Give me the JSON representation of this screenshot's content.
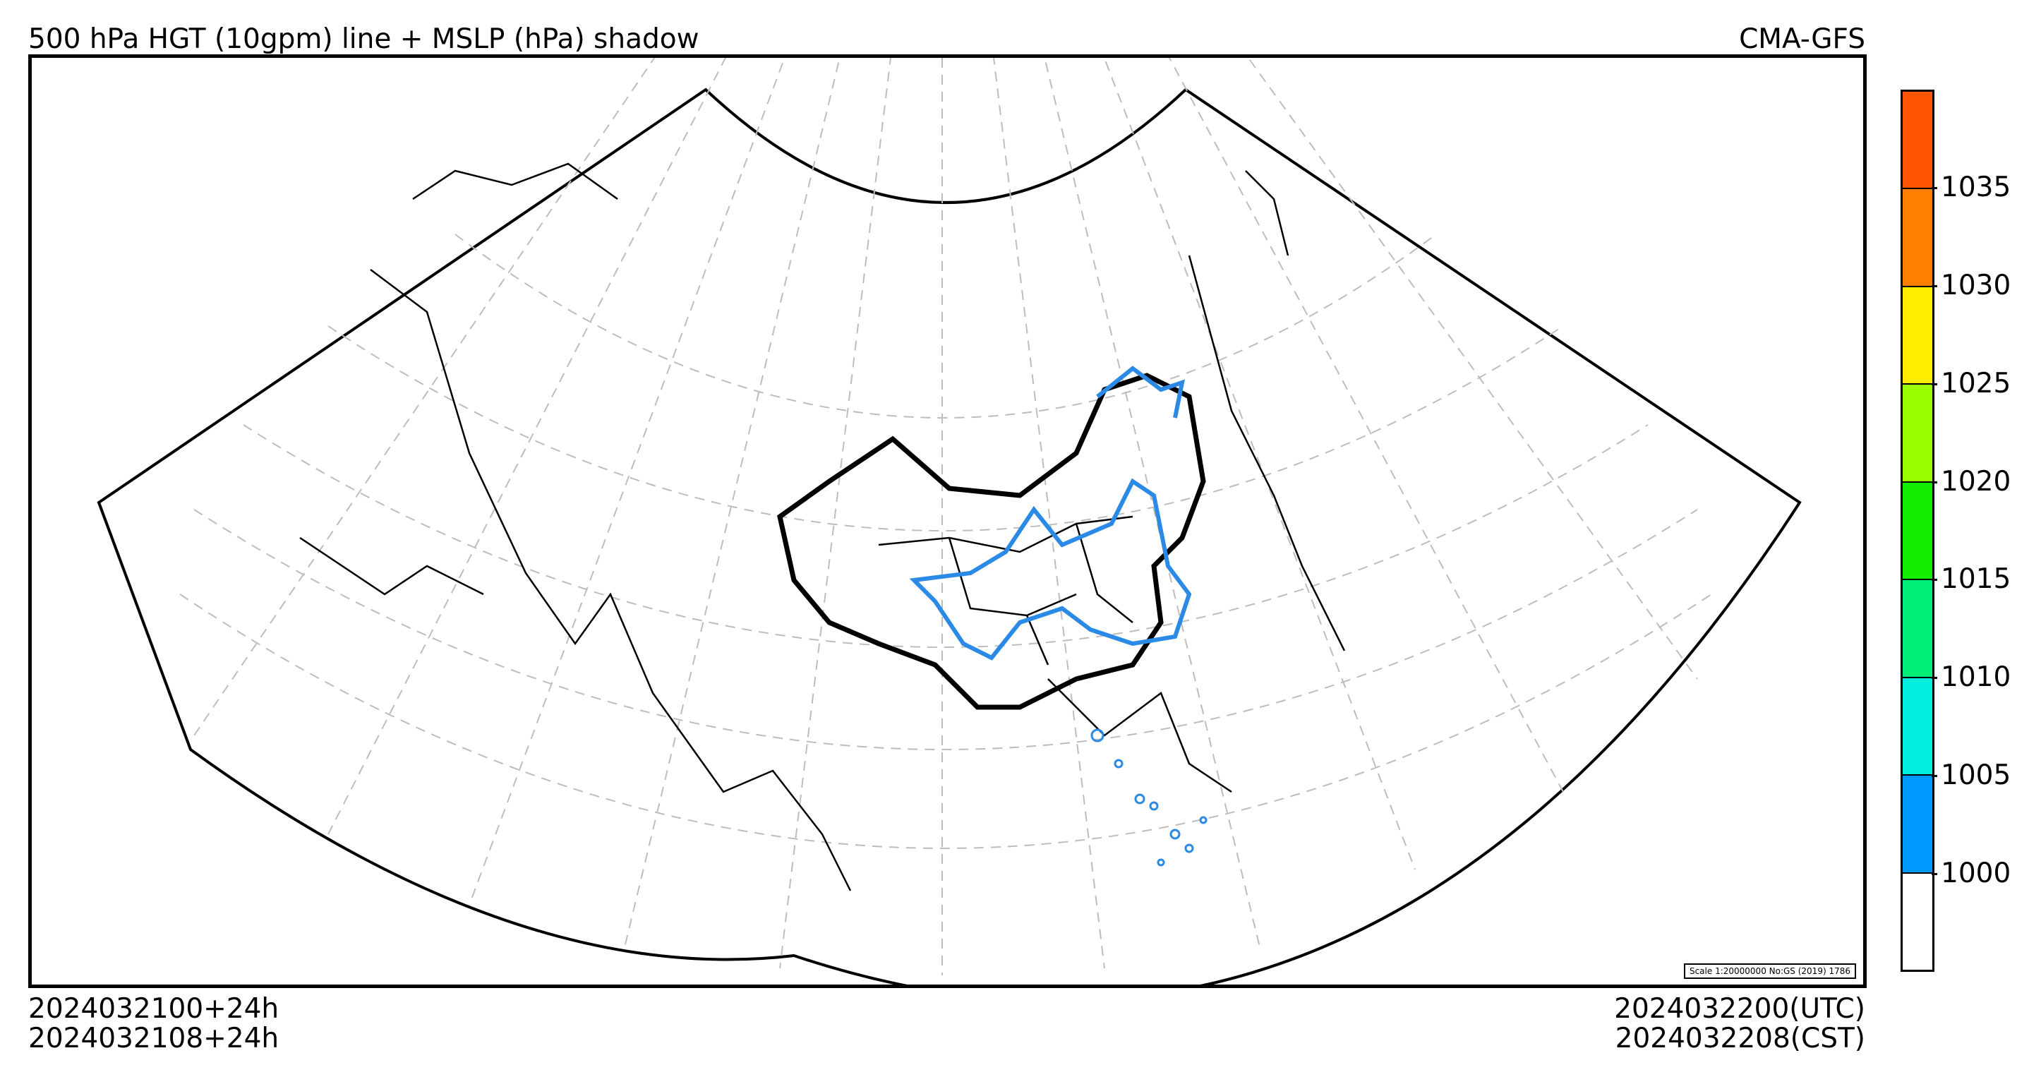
{
  "header": {
    "title_left": "500 hPa HGT (10gpm) line + MSLP (hPa) shadow",
    "title_right": "CMA-GFS"
  },
  "footer": {
    "left_line1": "2024032100+24h",
    "left_line2": "2024032108+24h",
    "right_line1": "2024032200(UTC)",
    "right_line2": "2024032208(CST)"
  },
  "map": {
    "projection": "lambert conic (fan-shaped domain, Asia)",
    "scale_note": "Scale 1:20000000 No:GS (2019) 1786",
    "coastline_color": "#000000",
    "graticule_color": "#bdbdbd",
    "contour_color": "#2a8ae6",
    "china_border_color": "#000000"
  },
  "colorbar": {
    "title": "",
    "labels": [
      "1035",
      "1030",
      "1025",
      "1020",
      "1015",
      "1010",
      "1005",
      "1000"
    ],
    "colors_top_to_bottom": [
      "#ff5500",
      "#ff7f00",
      "#ffee00",
      "#99ff00",
      "#11ee00",
      "#00ee77",
      "#00eedd",
      "#0099ff",
      "#ffffff"
    ]
  }
}
